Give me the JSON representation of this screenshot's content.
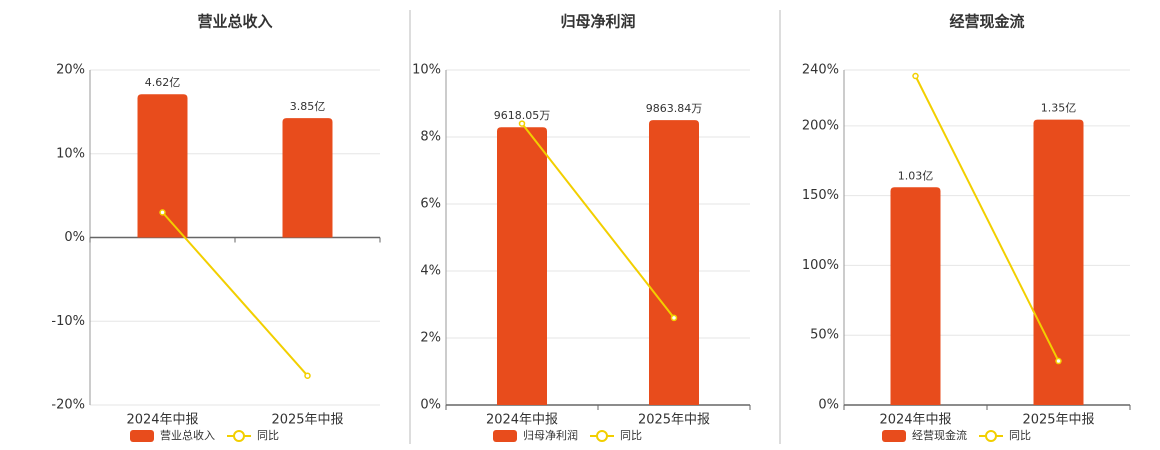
{
  "chart_data": [
    {
      "type": "bar-line",
      "title": "营业总收入",
      "categories": [
        "2024年中报",
        "2025年中报"
      ],
      "series": [
        {
          "name": "营业总收入",
          "color": "#e84c1c",
          "values": [
            4.62,
            3.85
          ],
          "value_labels": [
            "4.62亿",
            "3.85亿"
          ],
          "axis": "y2"
        },
        {
          "name": "同比",
          "color": "#f2cf00",
          "values": [
            3.0,
            -16.5
          ]
        }
      ],
      "ylim": [
        -20,
        20
      ],
      "yticks": [
        {
          "value": -20,
          "label": "-20%"
        },
        {
          "value": -10,
          "label": "-10%"
        },
        {
          "value": 0,
          "label": "0%"
        },
        {
          "value": 10,
          "label": "10%"
        },
        {
          "value": 20,
          "label": "20%"
        }
      ],
      "y2lim": [
        -5.4,
        5.4
      ],
      "grid": true
    },
    {
      "type": "bar-line",
      "title": "归母净利润",
      "categories": [
        "2024年中报",
        "2025年中报"
      ],
      "series": [
        {
          "name": "归母净利润",
          "color": "#e84c1c",
          "values": [
            9618.05,
            9863.84
          ],
          "value_labels": [
            "9618.05万",
            "9863.84万"
          ],
          "axis": "y2"
        },
        {
          "name": "同比",
          "color": "#f2cf00",
          "values": [
            8.4,
            2.6
          ]
        }
      ],
      "ylim": [
        0,
        10
      ],
      "yticks": [
        {
          "value": 0,
          "label": "0%"
        },
        {
          "value": 2,
          "label": "2%"
        },
        {
          "value": 4,
          "label": "4%"
        },
        {
          "value": 6,
          "label": "6%"
        },
        {
          "value": 8,
          "label": "8%"
        },
        {
          "value": 10,
          "label": "10%"
        }
      ],
      "y2lim": [
        0,
        11600
      ],
      "grid": true
    },
    {
      "type": "bar-line",
      "title": "经营现金流",
      "categories": [
        "2024年中报",
        "2025年中报"
      ],
      "series": [
        {
          "name": "经营现金流",
          "color": "#e84c1c",
          "values": [
            1.03,
            1.35
          ],
          "value_labels": [
            "1.03亿",
            "1.35亿"
          ],
          "axis": "y2"
        },
        {
          "name": "同比",
          "color": "#f2cf00",
          "values": [
            235.7,
            31.5
          ]
        }
      ],
      "ylim": [
        0,
        240
      ],
      "yticks": [
        {
          "value": 0,
          "label": "0%"
        },
        {
          "value": 50,
          "label": "50%"
        },
        {
          "value": 100,
          "label": "100%"
        },
        {
          "value": 150,
          "label": "150%"
        },
        {
          "value": 200,
          "label": "200%"
        },
        {
          "value": 240,
          "label": "240%"
        }
      ],
      "y2lim": [
        0,
        1.585
      ],
      "grid": true
    }
  ]
}
